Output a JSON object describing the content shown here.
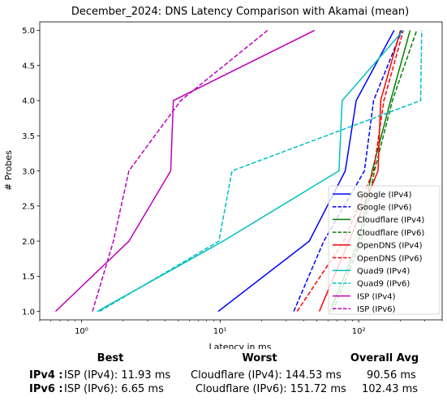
{
  "chart_data": {
    "type": "line",
    "title": "December_2024: DNS Latency Comparison with Akamai (mean)",
    "xlabel": "Latency in ms",
    "ylabel": "# Probes",
    "xscale": "log",
    "xlim": [
      0.5,
      400
    ],
    "ylim": [
      0.88,
      5.12
    ],
    "xticks": [
      {
        "value": 1,
        "label": "10⁰"
      },
      {
        "value": 10,
        "label": "10¹"
      },
      {
        "value": 100,
        "label": "10²"
      }
    ],
    "yticks": [
      "1.0",
      "1.5",
      "2.0",
      "2.5",
      "3.0",
      "3.5",
      "4.0",
      "4.5",
      "5.0"
    ],
    "legend_position": "lower-right",
    "grid": false,
    "series": [
      {
        "name": "Google (IPv4)",
        "color": "#0000ff",
        "dash": "solid",
        "points": [
          [
            9.7,
            1
          ],
          [
            44,
            2
          ],
          [
            80,
            3
          ],
          [
            96,
            4
          ],
          [
            180,
            5
          ]
        ]
      },
      {
        "name": "Google (IPv6)",
        "color": "#0000ff",
        "dash": "dashed",
        "points": [
          [
            34,
            1
          ],
          [
            56,
            2
          ],
          [
            110,
            3
          ],
          [
            128,
            4
          ],
          [
            205,
            5
          ]
        ]
      },
      {
        "name": "Cloudflare (IPv4)",
        "color": "#008000",
        "dash": "solid",
        "points": [
          [
            62,
            1
          ],
          [
            100,
            2
          ],
          [
            125,
            3
          ],
          [
            170,
            4
          ],
          [
            235,
            5
          ]
        ]
      },
      {
        "name": "Cloudflare (IPv6)",
        "color": "#008000",
        "dash": "dashed",
        "points": [
          [
            65,
            1
          ],
          [
            104,
            2
          ],
          [
            130,
            3
          ],
          [
            175,
            4
          ],
          [
            262,
            5
          ]
        ]
      },
      {
        "name": "OpenDNS (IPv4)",
        "color": "#ff0000",
        "dash": "solid",
        "points": [
          [
            52,
            1
          ],
          [
            85,
            2
          ],
          [
            138,
            3
          ],
          [
            144,
            4
          ],
          [
            200,
            5
          ]
        ]
      },
      {
        "name": "OpenDNS (IPv6)",
        "color": "#ff0000",
        "dash": "dashed",
        "points": [
          [
            36,
            1
          ],
          [
            78,
            2
          ],
          [
            128,
            3
          ],
          [
            152,
            4
          ],
          [
            210,
            5
          ]
        ]
      },
      {
        "name": "Quad9 (IPv4)",
        "color": "#00bfbf",
        "dash": "solid",
        "points": [
          [
            1.3,
            1
          ],
          [
            10.5,
            2
          ],
          [
            72,
            3
          ],
          [
            76,
            4
          ],
          [
            210,
            5
          ]
        ]
      },
      {
        "name": "Quad9 (IPv6)",
        "color": "#00bfbf",
        "dash": "dashed",
        "points": [
          [
            1.35,
            1
          ],
          [
            9.8,
            2
          ],
          [
            12.2,
            3
          ],
          [
            280,
            4
          ],
          [
            285,
            5
          ]
        ]
      },
      {
        "name": "ISP (IPv4)",
        "color": "#bf00bf",
        "dash": "solid",
        "points": [
          [
            0.65,
            1
          ],
          [
            2.2,
            2
          ],
          [
            4.4,
            3
          ],
          [
            4.6,
            4
          ],
          [
            48,
            5
          ]
        ]
      },
      {
        "name": "ISP (IPv6)",
        "color": "#bf00bf",
        "dash": "dashed",
        "points": [
          [
            1.2,
            1
          ],
          [
            1.7,
            2
          ],
          [
            2.2,
            3
          ],
          [
            5.2,
            4
          ],
          [
            22,
            5
          ]
        ]
      }
    ]
  },
  "stats": {
    "headers": {
      "best": "Best",
      "worst": "Worst",
      "avg": "Overall Avg"
    },
    "rows": [
      {
        "label": "IPv4 :",
        "best": "ISP (IPv4): 11.93 ms",
        "worst": "Cloudflare (IPv4): 144.53 ms",
        "avg": "90.56 ms"
      },
      {
        "label": "IPv6 :",
        "best": "ISP (IPv6): 6.65 ms",
        "worst": "Cloudflare (IPv6): 151.72 ms",
        "avg": "102.43 ms"
      }
    ]
  }
}
